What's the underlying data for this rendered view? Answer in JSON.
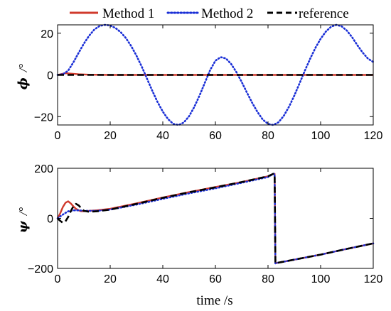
{
  "chart_data": [
    {
      "type": "line",
      "ylabel_symbol": "ϕ",
      "ylabel_unit": "/°",
      "xlabel": "",
      "xlim": [
        0,
        120
      ],
      "ylim": [
        -24,
        24
      ],
      "xticks": [
        "0",
        "20",
        "40",
        "60",
        "80",
        "100",
        "120"
      ],
      "yticks": [
        "20",
        "0",
        "−20"
      ],
      "ytick_values": [
        20,
        0,
        -20
      ],
      "grid": false,
      "legend": {
        "position": "top-center",
        "entries": [
          {
            "name": "Method 1",
            "color": "#d03a2c",
            "style": "solid"
          },
          {
            "name": "Method 2",
            "color": "#1a2fd6",
            "style": "dotted"
          },
          {
            "name": "reference",
            "color": "#000000",
            "style": "dashed"
          }
        ]
      },
      "series": [
        {
          "name": "Method 1",
          "color": "#d03a2c",
          "style": "solid",
          "x": [
            0,
            3,
            5,
            8,
            12,
            20,
            40,
            60,
            80,
            100,
            120
          ],
          "y": [
            0,
            0.8,
            0.6,
            0.3,
            0.1,
            0,
            0,
            0,
            0,
            0,
            0
          ]
        },
        {
          "name": "Method 2",
          "color": "#1a2fd6",
          "style": "dotted",
          "x": [
            0,
            2,
            4,
            6,
            8,
            10,
            12,
            14,
            16,
            18,
            20,
            22,
            24,
            26,
            28,
            30,
            32,
            34,
            36,
            38,
            40,
            42,
            44,
            46,
            48,
            50,
            52,
            54,
            56,
            58,
            60,
            62,
            64,
            66,
            68,
            70,
            72,
            74,
            76,
            78,
            80,
            82,
            84,
            86,
            88,
            90,
            92,
            94,
            96,
            98,
            100,
            102,
            104,
            106,
            108,
            110,
            112,
            114,
            116,
            118,
            120
          ],
          "y": [
            0,
            0.3,
            2,
            6,
            10.6,
            15,
            18.8,
            21.8,
            23.5,
            24,
            23.7,
            22.5,
            20.5,
            17.6,
            13.8,
            9.2,
            4,
            -1.8,
            -7.6,
            -13,
            -17.6,
            -21.2,
            -23.5,
            -24,
            -22.8,
            -19.8,
            -15.3,
            -9.8,
            -3.7,
            2.3,
            6.8,
            8.5,
            7.9,
            5.2,
            1.3,
            -3.4,
            -8.5,
            -13.4,
            -17.8,
            -21.4,
            -23.5,
            -24,
            -22.7,
            -19.6,
            -15.2,
            -9.9,
            -4,
            2,
            7.7,
            12.9,
            17.3,
            20.8,
            23.1,
            24,
            23.3,
            21.2,
            18,
            14.2,
            10.7,
            7.8,
            6.2
          ]
        },
        {
          "name": "reference",
          "color": "#000000",
          "style": "dashed",
          "x": [
            0,
            120
          ],
          "y": [
            0,
            0
          ]
        }
      ]
    },
    {
      "type": "line",
      "ylabel_symbol": "ψ",
      "ylabel_unit": "/°",
      "xlabel": "time /s",
      "xlim": [
        0,
        120
      ],
      "ylim": [
        -200,
        200
      ],
      "xticks": [
        "0",
        "20",
        "40",
        "60",
        "80",
        "100",
        "120"
      ],
      "yticks": [
        "200",
        "0",
        "−200"
      ],
      "ytick_values": [
        200,
        0,
        -200
      ],
      "grid": false,
      "series": [
        {
          "name": "Method 1",
          "color": "#d03a2c",
          "style": "solid",
          "x": [
            0,
            1,
            2,
            3,
            4,
            5,
            6,
            7,
            8,
            9,
            10,
            12,
            15,
            20,
            30,
            40,
            50,
            60,
            70,
            80,
            82,
            82.5,
            82.8,
            83.5,
            85,
            90,
            100,
            110,
            120
          ],
          "y": [
            0,
            20,
            45,
            62,
            68,
            60,
            48,
            38,
            32,
            28,
            28,
            30,
            32,
            38,
            60,
            83,
            105,
            125,
            145,
            168,
            178,
            178,
            -180,
            -178,
            -175,
            -165,
            -145,
            -122,
            -100
          ]
        },
        {
          "name": "Method 2",
          "color": "#1a2fd6",
          "style": "dotted",
          "x": [
            0,
            2,
            4,
            6,
            8,
            10,
            15,
            20,
            30,
            40,
            50,
            60,
            70,
            80,
            82,
            82.5,
            82.8,
            83.5,
            85,
            90,
            100,
            110,
            120
          ],
          "y": [
            0,
            15,
            28,
            32,
            32,
            30,
            30,
            35,
            55,
            78,
            100,
            120,
            142,
            165,
            178,
            178,
            -180,
            -178,
            -175,
            -165,
            -145,
            -122,
            -100
          ]
        },
        {
          "name": "reference",
          "color": "#000000",
          "style": "dashed",
          "x": [
            0,
            1,
            2,
            3,
            4,
            5,
            6,
            7,
            8,
            9,
            10,
            12,
            15,
            20,
            30,
            40,
            50,
            60,
            70,
            80,
            82,
            82.5,
            82.8,
            83.5,
            85,
            90,
            100,
            110,
            120
          ],
          "y": [
            0,
            -10,
            -18,
            -12,
            5,
            28,
            48,
            58,
            52,
            40,
            30,
            26,
            28,
            35,
            58,
            82,
            104,
            124,
            145,
            168,
            178,
            178,
            -180,
            -178,
            -175,
            -165,
            -145,
            -122,
            -100
          ]
        }
      ]
    }
  ]
}
